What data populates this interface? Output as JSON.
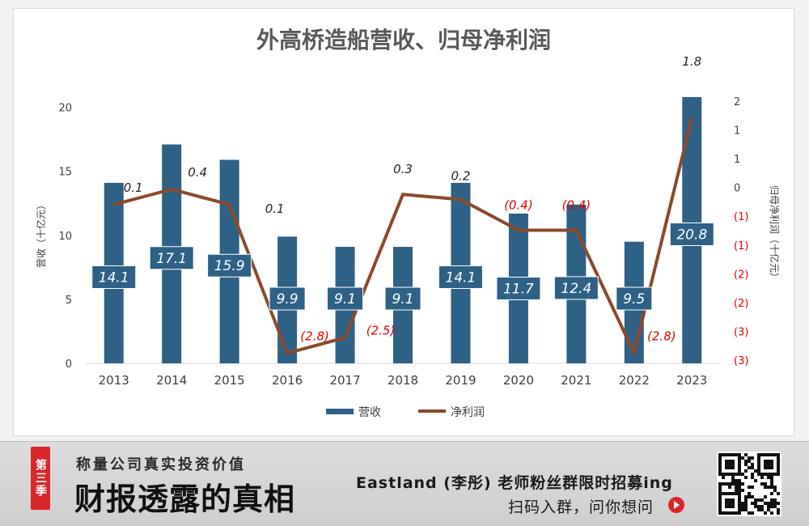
{
  "chart_data": {
    "type": "bar+line",
    "title": "外高桥造船营收、归母净利润",
    "categories": [
      "2013",
      "2014",
      "2015",
      "2016",
      "2017",
      "2018",
      "2019",
      "2020",
      "2021",
      "2022",
      "2023"
    ],
    "series": [
      {
        "name": "营收",
        "type": "bar",
        "axis": "left",
        "color": "#2e6185",
        "values": [
          14.1,
          17.1,
          15.9,
          9.9,
          9.1,
          9.1,
          14.1,
          11.7,
          12.4,
          9.5,
          20.8
        ],
        "labels": [
          "14.1",
          "17.1",
          "15.9",
          "9.9",
          "9.1",
          "9.1",
          "14.1",
          "11.7",
          "12.4",
          "9.5",
          "20.8"
        ]
      },
      {
        "name": "净利润",
        "type": "line",
        "axis": "right",
        "color": "#8b4a2b",
        "values": [
          0.1,
          0.4,
          0.1,
          -2.8,
          -2.5,
          0.3,
          0.2,
          -0.4,
          -0.4,
          -2.8,
          1.8
        ],
        "labels": [
          "0.1",
          "0.4",
          "0.1",
          "(2.8)",
          "(2.5)",
          "0.3",
          "0.2",
          "(0.4)",
          "(0.4)",
          "(2.8)",
          "1.8"
        ]
      }
    ],
    "ylabel": "营收（十亿元）",
    "y2label": "归母净利润（十亿元）",
    "ylim": [
      0,
      22
    ],
    "y2lim": [
      -3.0,
      2.5
    ],
    "yticks": [
      "0",
      "5",
      "10",
      "15",
      "20"
    ],
    "y2ticks": [
      "2",
      "1",
      "1",
      "0",
      "(1)",
      "(1)",
      "(2)",
      "(2)",
      "(3)",
      "(3)"
    ],
    "legend_position": "bottom",
    "grid": false
  },
  "banner": {
    "season": "第三季",
    "subtitle": "称量公司真实投资价值",
    "title": "财报透露的真相",
    "promo": "Eastland (李彤) 老师粉丝群限时招募ing",
    "scan": "扫码入群，问你想问",
    "arrow_icon": "arrow-right-circle-icon",
    "qr_icon": "qr-code-icon",
    "accent_color": "#d9262c"
  }
}
